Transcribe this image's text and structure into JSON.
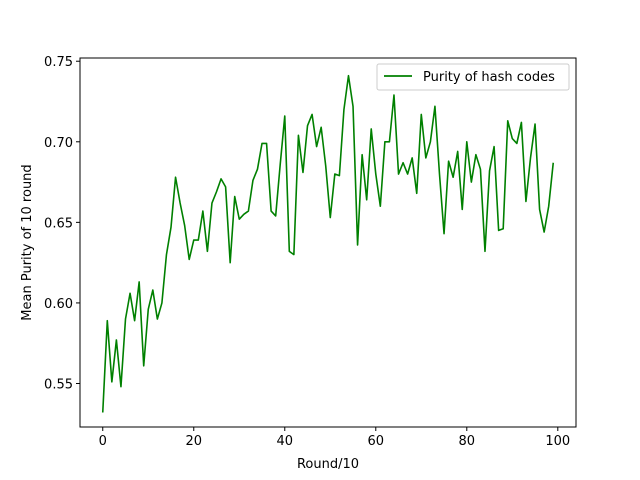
{
  "chart_data": {
    "type": "line",
    "title": "",
    "xlabel": "Round/10",
    "ylabel": "Mean Purity of 10 round",
    "xlim": [
      -5,
      104
    ],
    "ylim": [
      0.523,
      0.752
    ],
    "xticks": [
      0,
      20,
      40,
      60,
      80,
      100
    ],
    "xtick_labels": [
      "0",
      "20",
      "40",
      "60",
      "80",
      "100"
    ],
    "yticks": [
      0.55,
      0.6,
      0.65,
      0.7,
      0.75
    ],
    "ytick_labels": [
      "0.55",
      "0.60",
      "0.65",
      "0.70",
      "0.75"
    ],
    "grid": false,
    "legend_position": "top-right",
    "series": [
      {
        "name": "Purity of hash codes",
        "color": "#008000",
        "x": [
          0,
          1,
          2,
          3,
          4,
          5,
          6,
          7,
          8,
          9,
          10,
          11,
          12,
          13,
          14,
          15,
          16,
          17,
          18,
          19,
          20,
          21,
          22,
          23,
          24,
          25,
          26,
          27,
          28,
          29,
          30,
          31,
          32,
          33,
          34,
          35,
          36,
          37,
          38,
          39,
          40,
          41,
          42,
          43,
          44,
          45,
          46,
          47,
          48,
          49,
          50,
          51,
          52,
          53,
          54,
          55,
          56,
          57,
          58,
          59,
          60,
          61,
          62,
          63,
          64,
          65,
          66,
          67,
          68,
          69,
          70,
          71,
          72,
          73,
          74,
          75,
          76,
          77,
          78,
          79,
          80,
          81,
          82,
          83,
          84,
          85,
          86,
          87,
          88,
          89,
          90,
          91,
          92,
          93,
          94,
          95,
          96,
          97,
          98,
          99
        ],
        "values": [
          0.532,
          0.589,
          0.551,
          0.577,
          0.548,
          0.59,
          0.606,
          0.589,
          0.613,
          0.561,
          0.596,
          0.608,
          0.59,
          0.6,
          0.63,
          0.647,
          0.678,
          0.662,
          0.648,
          0.627,
          0.639,
          0.639,
          0.657,
          0.632,
          0.662,
          0.669,
          0.677,
          0.672,
          0.625,
          0.666,
          0.652,
          0.655,
          0.657,
          0.676,
          0.683,
          0.699,
          0.699,
          0.657,
          0.654,
          0.686,
          0.716,
          0.632,
          0.63,
          0.704,
          0.681,
          0.71,
          0.717,
          0.697,
          0.709,
          0.685,
          0.653,
          0.68,
          0.679,
          0.72,
          0.741,
          0.722,
          0.636,
          0.692,
          0.664,
          0.708,
          0.68,
          0.66,
          0.7,
          0.7,
          0.729,
          0.68,
          0.687,
          0.68,
          0.69,
          0.668,
          0.717,
          0.69,
          0.7,
          0.722,
          0.68,
          0.643,
          0.688,
          0.678,
          0.694,
          0.658,
          0.7,
          0.675,
          0.692,
          0.683,
          0.632,
          0.682,
          0.697,
          0.645,
          0.646,
          0.713,
          0.702,
          0.699,
          0.712,
          0.663,
          0.69,
          0.711,
          0.658,
          0.644,
          0.66,
          0.687
        ]
      }
    ]
  }
}
